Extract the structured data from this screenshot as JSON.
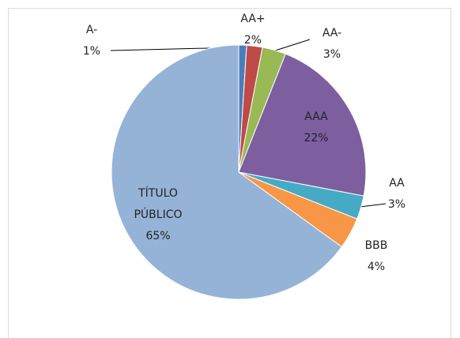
{
  "chart_data": {
    "type": "pie",
    "categories": [
      "A-",
      "AA+",
      "AA-",
      "AAA",
      "AA",
      "BBB",
      "TÍTULO PÚBLICO"
    ],
    "values": [
      1,
      2,
      3,
      22,
      3,
      4,
      65
    ],
    "value_labels": [
      "1%",
      "2%",
      "3%",
      "22%",
      "3%",
      "4%",
      "65%"
    ],
    "colors": [
      "#4a7ebb",
      "#be4b48",
      "#98b954",
      "#7d5fa0",
      "#46aac5",
      "#f79646",
      "#95b3d7"
    ]
  }
}
